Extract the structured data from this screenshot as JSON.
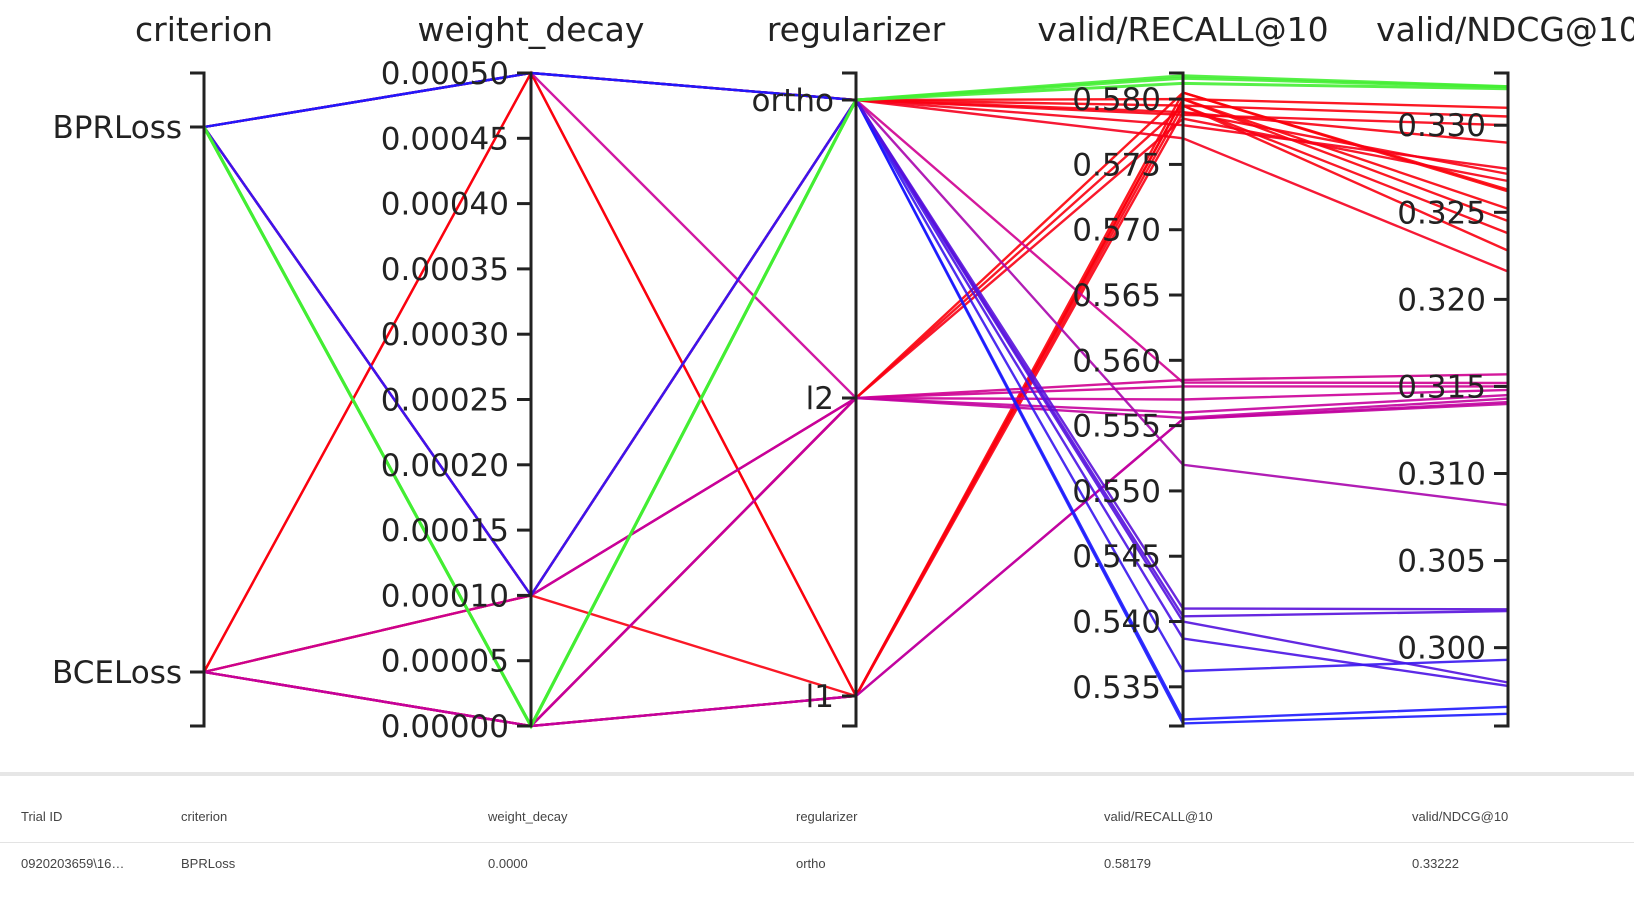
{
  "chart_data": {
    "type": "parallel_coordinates",
    "axes": [
      {
        "name": "criterion",
        "kind": "categorical",
        "categories": [
          "BPRLoss",
          "BCELoss"
        ]
      },
      {
        "name": "weight_decay",
        "kind": "numeric",
        "range": [
          0,
          0.0005
        ],
        "ticks": [
          "0.00000",
          "0.00005",
          "0.00010",
          "0.00015",
          "0.00020",
          "0.00025",
          "0.00030",
          "0.00035",
          "0.00040",
          "0.00045",
          "0.00050"
        ]
      },
      {
        "name": "regularizer",
        "kind": "categorical",
        "categories": [
          "ortho",
          "l2",
          "l1"
        ]
      },
      {
        "name": "valid/RECALL@10",
        "kind": "numeric",
        "range": [
          0.532,
          0.582
        ],
        "ticks": [
          "0.535",
          "0.540",
          "0.545",
          "0.550",
          "0.555",
          "0.560",
          "0.565",
          "0.570",
          "0.575",
          "0.580"
        ]
      },
      {
        "name": "valid/NDCG@10",
        "kind": "numeric",
        "range": [
          0.2955,
          0.333
        ],
        "ticks": [
          "0.300",
          "0.305",
          "0.310",
          "0.315",
          "0.320",
          "0.325",
          "0.330"
        ]
      }
    ],
    "color_scale": {
      "low": "#1a1aff",
      "mid": "#cc0099",
      "high": "#ff0000",
      "highlight": "#44ee33"
    },
    "trials": [
      {
        "criterion": "BPRLoss",
        "weight_decay": 0.0,
        "regularizer": "ortho",
        "recall": 0.58179,
        "ndcg": 0.33222,
        "highlight": true
      },
      {
        "criterion": "BPRLoss",
        "weight_decay": 0.0,
        "regularizer": "ortho",
        "recall": 0.5816,
        "ndcg": 0.3322,
        "highlight": true
      },
      {
        "criterion": "BPRLoss",
        "weight_decay": 0.0,
        "regularizer": "ortho",
        "recall": 0.5812,
        "ndcg": 0.3321,
        "highlight": true
      },
      {
        "criterion": "BPRLoss",
        "weight_decay": 0.0005,
        "regularizer": "ortho",
        "recall": 0.58,
        "ndcg": 0.331
      },
      {
        "criterion": "BPRLoss",
        "weight_decay": 0.0005,
        "regularizer": "ortho",
        "recall": 0.5788,
        "ndcg": 0.33
      },
      {
        "criterion": "BPRLoss",
        "weight_decay": 0.0005,
        "regularizer": "l1",
        "recall": 0.5805,
        "ndcg": 0.3263
      },
      {
        "criterion": "BPRLoss",
        "weight_decay": 0.0001,
        "regularizer": "ortho",
        "recall": 0.5795,
        "ndcg": 0.3305
      },
      {
        "criterion": "BPRLoss",
        "weight_decay": 0.0001,
        "regularizer": "ortho",
        "recall": 0.577,
        "ndcg": 0.3216
      },
      {
        "criterion": "BPRLoss",
        "weight_decay": 0.0,
        "regularizer": "l2",
        "recall": 0.5805,
        "ndcg": 0.3262
      },
      {
        "criterion": "BPRLoss",
        "weight_decay": 0.0,
        "regularizer": "l1",
        "recall": 0.58,
        "ndcg": 0.3252
      },
      {
        "criterion": "BCELoss",
        "weight_decay": 0.0005,
        "regularizer": "ortho",
        "recall": 0.579,
        "ndcg": 0.329
      },
      {
        "criterion": "BCELoss",
        "weight_decay": 0.0005,
        "regularizer": "l1",
        "recall": 0.58,
        "ndcg": 0.3245
      },
      {
        "criterion": "BCELoss",
        "weight_decay": 0.0001,
        "regularizer": "l2",
        "recall": 0.5795,
        "ndcg": 0.3238
      },
      {
        "criterion": "BCELoss",
        "weight_decay": 0.0001,
        "regularizer": "l1",
        "recall": 0.5795,
        "ndcg": 0.3228
      },
      {
        "criterion": "BCELoss",
        "weight_decay": 0.0,
        "regularizer": "l1",
        "recall": 0.579,
        "ndcg": 0.3272
      },
      {
        "criterion": "BCELoss",
        "weight_decay": 0.0,
        "regularizer": "ortho",
        "recall": 0.578,
        "ndcg": 0.3275
      },
      {
        "criterion": "BCELoss",
        "weight_decay": 0.0,
        "regularizer": "l2",
        "recall": 0.5785,
        "ndcg": 0.3268
      },
      {
        "criterion": "BPRLoss",
        "weight_decay": 0.0001,
        "regularizer": "l2",
        "recall": 0.5585,
        "ndcg": 0.3157
      },
      {
        "criterion": "BCELoss",
        "weight_decay": 0.0,
        "regularizer": "l2",
        "recall": 0.558,
        "ndcg": 0.315
      },
      {
        "criterion": "BPRLoss",
        "weight_decay": 0.0005,
        "regularizer": "l2",
        "recall": 0.557,
        "ndcg": 0.3148
      },
      {
        "criterion": "BCELoss",
        "weight_decay": 0.0001,
        "regularizer": "l2",
        "recall": 0.556,
        "ndcg": 0.3145
      },
      {
        "criterion": "BPRLoss",
        "weight_decay": 0.0,
        "regularizer": "l1",
        "recall": 0.5555,
        "ndcg": 0.3141
      },
      {
        "criterion": "BCELoss",
        "weight_decay": 0.0,
        "regularizer": "l1",
        "recall": 0.5555,
        "ndcg": 0.314
      },
      {
        "criterion": "BPRLoss",
        "weight_decay": 0.0,
        "regularizer": "l2",
        "recall": 0.5556,
        "ndcg": 0.3143
      },
      {
        "criterion": "BPRLoss",
        "weight_decay": 0.0001,
        "regularizer": "ortho",
        "recall": 0.5583,
        "ndcg": 0.3152
      },
      {
        "criterion": "BPRLoss",
        "weight_decay": 0.0005,
        "regularizer": "ortho",
        "recall": 0.552,
        "ndcg": 0.3082
      },
      {
        "criterion": "BPRLoss",
        "weight_decay": 0.0001,
        "regularizer": "ortho",
        "recall": 0.541,
        "ndcg": 0.3022
      },
      {
        "criterion": "BPRLoss",
        "weight_decay": 0.0005,
        "regularizer": "ortho",
        "recall": 0.54,
        "ndcg": 0.298
      },
      {
        "criterion": "BPRLoss",
        "weight_decay": 0.0,
        "regularizer": "ortho",
        "recall": 0.5387,
        "ndcg": 0.2978
      },
      {
        "criterion": "BPRLoss",
        "weight_decay": 0.0001,
        "regularizer": "ortho",
        "recall": 0.5362,
        "ndcg": 0.2993
      },
      {
        "criterion": "BPRLoss",
        "weight_decay": 0.0,
        "regularizer": "ortho",
        "recall": 0.5325,
        "ndcg": 0.2966
      },
      {
        "criterion": "BPRLoss",
        "weight_decay": 0.0005,
        "regularizer": "ortho",
        "recall": 0.5322,
        "ndcg": 0.2962
      },
      {
        "criterion": "BPRLoss",
        "weight_decay": 0.0,
        "regularizer": "ortho",
        "recall": 0.5404,
        "ndcg": 0.3021
      }
    ]
  },
  "table": {
    "headers": [
      "Trial ID",
      "criterion",
      "weight_decay",
      "regularizer",
      "valid/RECALL@10",
      "valid/NDCG@10"
    ],
    "row": [
      "0920203659\\16…",
      "BPRLoss",
      "0.0000",
      "ortho",
      "0.58179",
      "0.33222"
    ]
  }
}
